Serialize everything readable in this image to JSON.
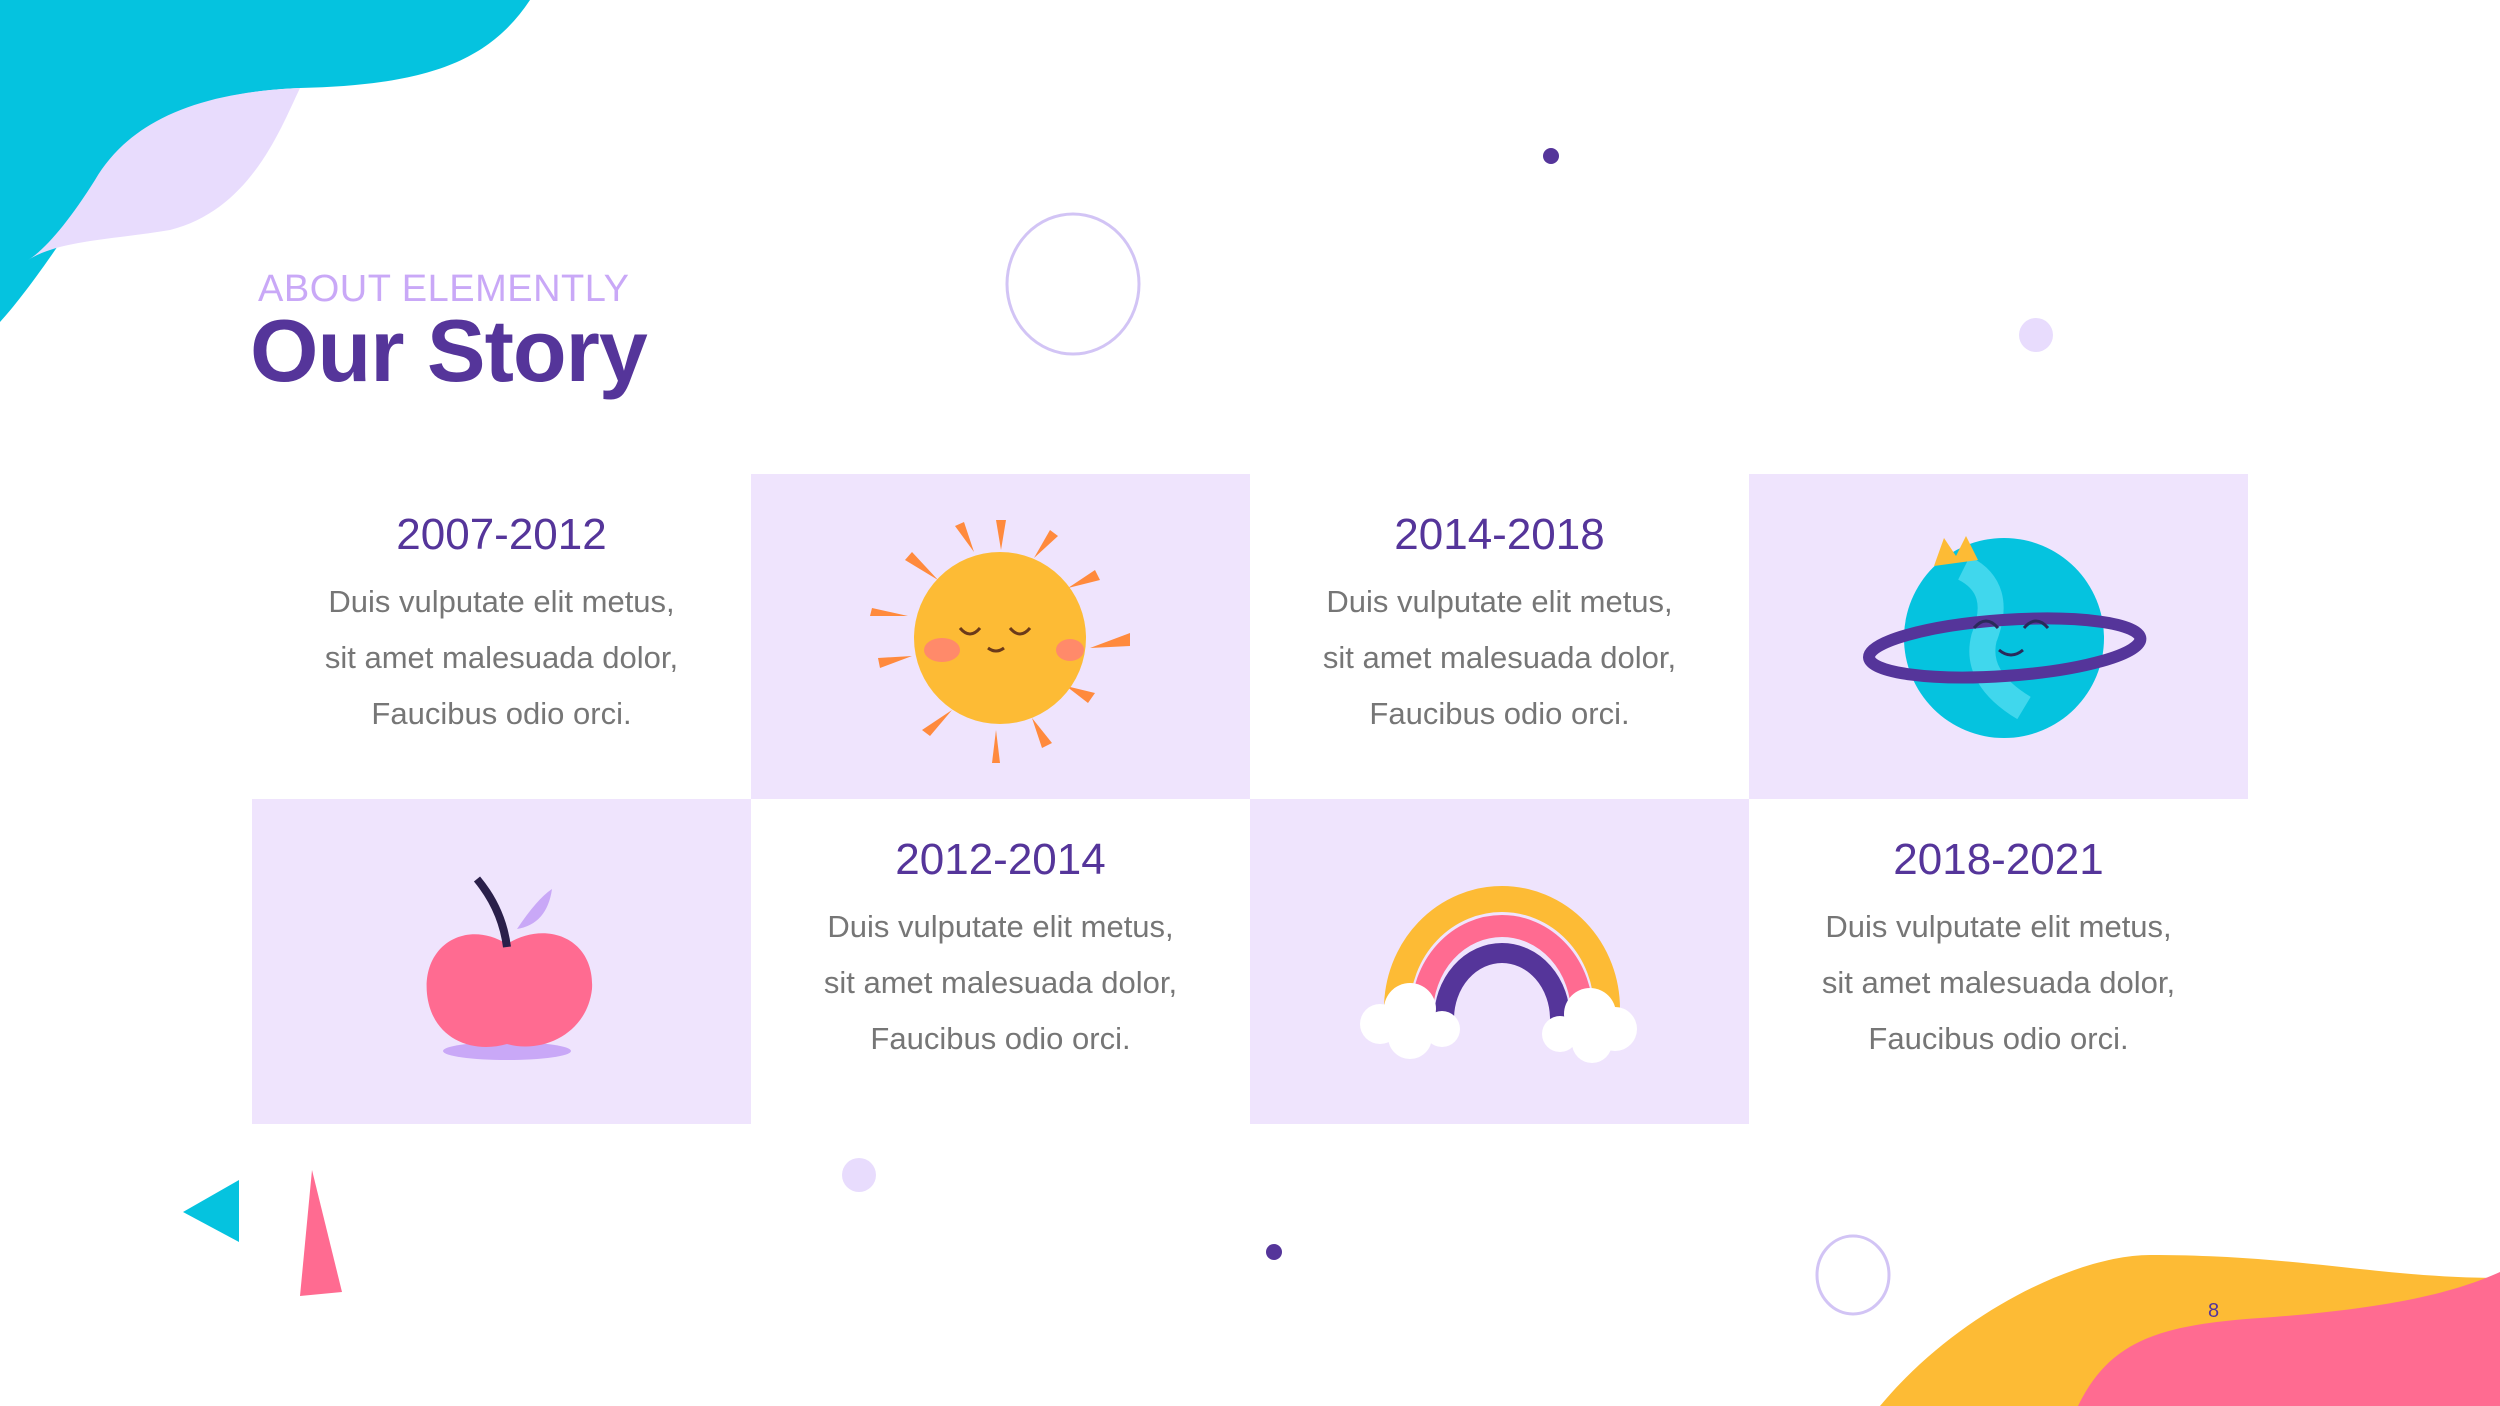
{
  "header": {
    "eyebrow": "ABOUT ELEMENTLY",
    "title": "Our Story"
  },
  "timeline": [
    {
      "years": "2007-2012",
      "lines": [
        "Duis vulputate elit metus,",
        "sit amet malesuada dolor,",
        "Faucibus odio orci."
      ]
    },
    {
      "years": "2014-2018",
      "lines": [
        "Duis vulputate elit metus,",
        "sit amet malesuada dolor,",
        "Faucibus odio orci."
      ]
    },
    {
      "years": "2012-2014",
      "lines": [
        "Duis vulputate elit metus,",
        "sit amet malesuada dolor,",
        "Faucibus odio orci."
      ]
    },
    {
      "years": "2018-2021",
      "lines": [
        "Duis vulputate elit metus,",
        "sit amet malesuada dolor,",
        "Faucibus odio orci."
      ]
    }
  ],
  "illustrations": [
    "sun-icon",
    "planet-icon",
    "apple-icon",
    "rainbow-icon"
  ],
  "page_number": "8",
  "colors": {
    "primary": "#55359a",
    "lavender": "#efe4fd",
    "cyan": "#05c3df",
    "yellow": "#fdbb35",
    "pink": "#ff6b91"
  }
}
